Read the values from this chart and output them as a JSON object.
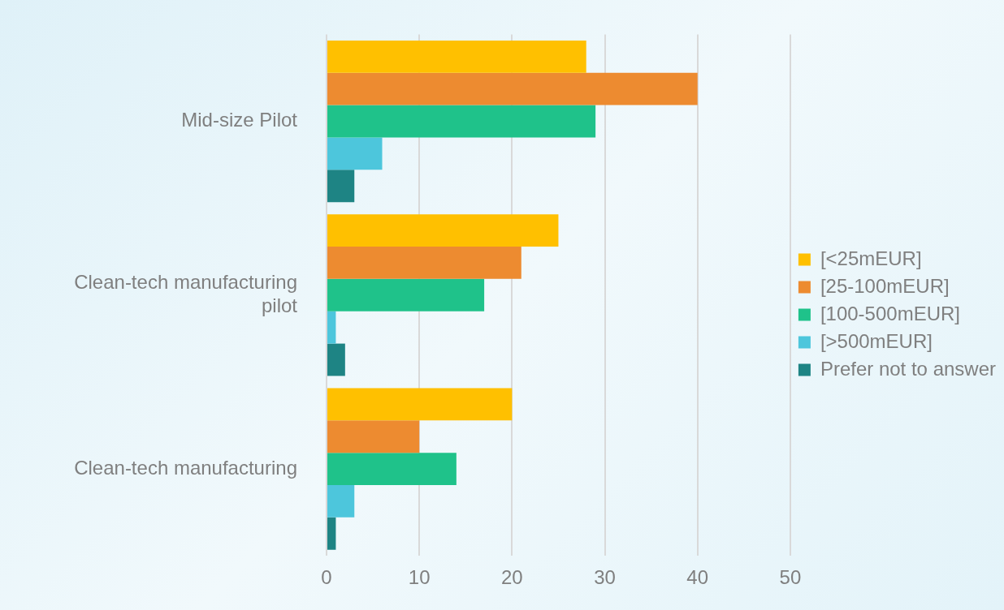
{
  "chart_data": {
    "type": "bar",
    "orientation": "horizontal",
    "categories": [
      "Mid-size Pilot",
      "Clean-tech manufacturing pilot",
      "Clean-tech manufacturing"
    ],
    "series": [
      {
        "name": "[<25mEUR]",
        "color": "#ffc000",
        "values": [
          28,
          25,
          20
        ]
      },
      {
        "name": "[25-100mEUR]",
        "color": "#ed8b30",
        "values": [
          40,
          21,
          10
        ]
      },
      {
        "name": "[100-500mEUR]",
        "color": "#1fc28a",
        "values": [
          29,
          17,
          14
        ]
      },
      {
        "name": "[>500mEUR]",
        "color": "#4dc6dc",
        "values": [
          6,
          1,
          3
        ]
      },
      {
        "name": "Prefer not to answer",
        "color": "#1e8484",
        "values": [
          3,
          2,
          1
        ]
      }
    ],
    "xlim": [
      0,
      50
    ],
    "xticks": [
      0,
      10,
      20,
      30,
      40,
      50
    ],
    "grid": "x",
    "legend": "right"
  }
}
